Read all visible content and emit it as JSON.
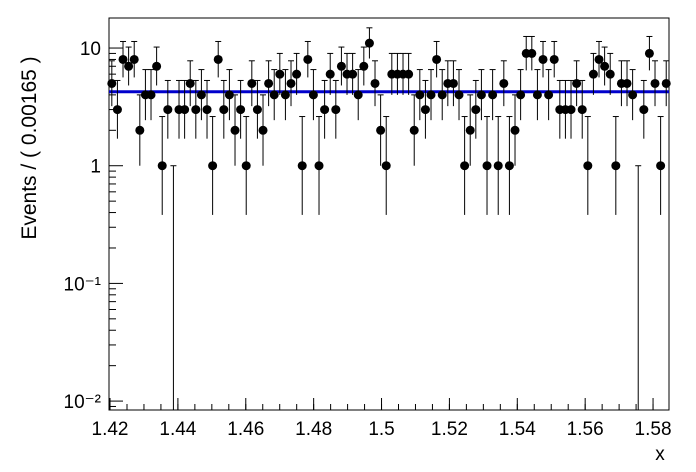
{
  "chart_data": {
    "type": "scatter",
    "x_label": "x",
    "y_label": "Events / ( 0.00165 )",
    "xlim": [
      1.4197,
      1.5847
    ],
    "xticks": [
      1.42,
      1.44,
      1.46,
      1.48,
      1.5,
      1.52,
      1.54,
      1.56,
      1.58
    ],
    "ylim": [
      0.0084,
      18
    ],
    "log_y": true,
    "yticks": [
      {
        "value": 0.01,
        "label": "10⁻²"
      },
      {
        "value": 0.1,
        "label": "10⁻¹"
      },
      1,
      10
    ],
    "series": [
      {
        "color": "#000000",
        "x": [
          1.42053,
          1.42218,
          1.42383,
          1.42548,
          1.42713,
          1.42878,
          1.43043,
          1.43208,
          1.43373,
          1.43538,
          1.43703,
          1.43868,
          1.44033,
          1.44198,
          1.44363,
          1.44528,
          1.44693,
          1.44858,
          1.45023,
          1.45188,
          1.45353,
          1.45518,
          1.45683,
          1.45848,
          1.46013,
          1.46178,
          1.46343,
          1.46508,
          1.46673,
          1.46838,
          1.47003,
          1.47168,
          1.47333,
          1.47498,
          1.47663,
          1.47828,
          1.47993,
          1.48158,
          1.48323,
          1.48488,
          1.48653,
          1.48818,
          1.48983,
          1.49148,
          1.49313,
          1.49478,
          1.49643,
          1.49808,
          1.49973,
          1.50138,
          1.50303,
          1.50468,
          1.50633,
          1.50798,
          1.50963,
          1.51128,
          1.51293,
          1.51458,
          1.51623,
          1.51788,
          1.51953,
          1.52118,
          1.52283,
          1.52448,
          1.52613,
          1.52778,
          1.52943,
          1.53108,
          1.53273,
          1.53438,
          1.53603,
          1.53768,
          1.53933,
          1.54098,
          1.54263,
          1.54428,
          1.54593,
          1.54758,
          1.54923,
          1.55088,
          1.55253,
          1.55418,
          1.55583,
          1.55748,
          1.55913,
          1.56078,
          1.56243,
          1.56408,
          1.56573,
          1.56738,
          1.56903,
          1.57068,
          1.57233,
          1.57398,
          1.57563,
          1.57728,
          1.57893,
          1.58058,
          1.58223,
          1.58388
        ],
        "values": [
          5,
          3,
          8,
          7,
          8,
          2,
          4,
          4,
          7,
          1,
          3,
          0,
          3,
          3,
          5,
          3,
          4,
          3,
          1,
          8,
          3,
          4,
          2,
          3,
          1,
          5,
          3,
          2,
          5,
          4,
          6,
          4,
          5,
          6,
          1,
          8,
          4,
          1,
          3,
          6,
          3,
          7,
          6,
          6,
          4,
          7,
          11,
          5,
          2,
          1,
          6,
          6,
          6,
          6,
          2,
          4,
          3,
          4,
          8,
          4,
          5,
          5,
          4,
          1,
          2,
          3,
          4,
          1,
          4,
          1,
          5,
          1,
          2,
          4,
          9,
          9,
          4,
          8,
          4,
          8,
          3,
          3,
          3,
          5,
          3,
          1,
          6,
          8,
          7,
          6,
          1,
          5,
          5,
          4,
          0,
          3,
          9,
          5,
          1,
          5
        ]
      }
    ],
    "fit": {
      "value": 4.25,
      "color": "#0000cc"
    }
  }
}
